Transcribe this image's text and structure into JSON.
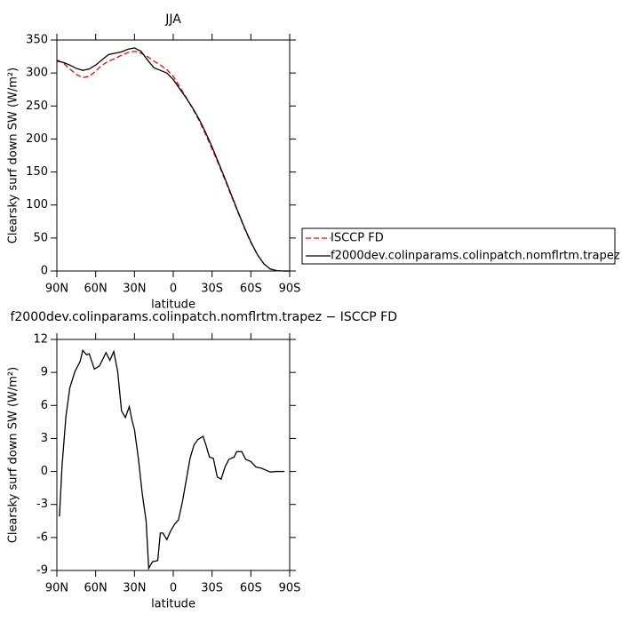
{
  "chart_data": [
    {
      "type": "line",
      "title": "JJA",
      "xlabel": "latitude",
      "ylabel": "Clearsky surf down SW (W/m²)",
      "x": [
        90,
        85,
        80,
        75,
        70,
        65,
        60,
        55,
        50,
        45,
        40,
        35,
        30,
        25,
        20,
        15,
        10,
        5,
        0,
        -5,
        -10,
        -15,
        -20,
        -25,
        -30,
        -35,
        -40,
        -45,
        -50,
        -55,
        -60,
        -65,
        -70,
        -75,
        -80,
        -85,
        -90
      ],
      "series": [
        {
          "name": "ISCCP FD",
          "color": "#ff0000",
          "line_style": "dashed",
          "values": [
            320,
            315,
            306,
            298,
            293,
            295,
            303,
            312,
            318,
            322,
            327,
            331,
            333,
            330,
            325,
            318,
            312,
            305,
            295,
            279,
            263,
            246,
            228,
            207,
            185,
            162,
            138,
            113,
            89,
            65,
            43,
            25,
            11,
            3,
            0.5,
            0,
            0
          ]
        },
        {
          "name": "f2000dev.colinparams.colinpatch.nomflrtm.trapez",
          "color": "#000000",
          "line_style": "solid",
          "values": [
            318,
            316,
            312,
            307,
            304,
            306,
            312,
            320,
            328,
            330,
            332,
            336,
            338,
            333,
            320,
            308,
            304,
            300,
            290,
            276,
            262,
            247,
            230,
            210,
            188,
            164,
            140,
            115,
            90,
            66,
            44,
            25,
            11,
            3,
            0.5,
            0,
            0
          ]
        }
      ],
      "xlim": [
        90,
        -90
      ],
      "xticks": [
        {
          "value": 90,
          "label": "90N"
        },
        {
          "value": 60,
          "label": "60N"
        },
        {
          "value": 30,
          "label": "30N"
        },
        0,
        {
          "value": -30,
          "label": "30S"
        },
        {
          "value": -60,
          "label": "60S"
        },
        {
          "value": -90,
          "label": "90S"
        }
      ],
      "ylim": [
        0,
        350
      ],
      "yticks": [
        0,
        50,
        100,
        150,
        200,
        250,
        300,
        350
      ],
      "legend": "right"
    },
    {
      "type": "line",
      "title": "f2000dev.colinparams.colinpatch.nomflrtm.trapez − ISCCP FD",
      "xlabel": "latitude",
      "ylabel": "Clearsky surf down SW (W/m²)",
      "x": [
        88,
        86,
        83,
        80,
        76,
        72,
        70,
        67,
        65,
        61,
        57,
        52,
        49,
        46,
        43,
        40,
        37,
        34,
        32,
        30,
        27,
        24,
        21,
        19,
        16,
        12,
        10,
        8,
        5,
        2,
        -1,
        -4,
        -7,
        -10,
        -13,
        -16,
        -19,
        -23,
        -25,
        -28,
        -31,
        -34,
        -37,
        -40,
        -43,
        -47,
        -49,
        -53,
        -56,
        -60,
        -64,
        -68,
        -72,
        -75,
        -80,
        -86
      ],
      "values": [
        -4.1,
        0.5,
        5,
        7.6,
        9.1,
        10,
        11,
        10.6,
        10.7,
        9.3,
        9.6,
        10.8,
        10.1,
        10.9,
        9.1,
        5.5,
        4.9,
        5.9,
        4.7,
        3.8,
        1.2,
        -2,
        -4.5,
        -8.8,
        -8.2,
        -8.1,
        -5.6,
        -5.6,
        -6.2,
        -5.4,
        -4.8,
        -4.4,
        -2.8,
        -0.8,
        1.2,
        2.4,
        2.9,
        3.2,
        2.5,
        1.3,
        1.2,
        -0.5,
        -0.7,
        0.4,
        1.1,
        1.3,
        1.8,
        1.8,
        1.1,
        0.9,
        0.4,
        0.3,
        0.1,
        -0.05,
        0,
        0
      ],
      "color": "#000000",
      "xlim": [
        90,
        -90
      ],
      "xticks": [
        {
          "value": 90,
          "label": "90N"
        },
        {
          "value": 60,
          "label": "60N"
        },
        {
          "value": 30,
          "label": "30N"
        },
        0,
        {
          "value": -30,
          "label": "30S"
        },
        {
          "value": -60,
          "label": "60S"
        },
        {
          "value": -90,
          "label": "90S"
        }
      ],
      "ylim": [
        -9,
        12
      ],
      "yticks": [
        -9,
        -6,
        -3,
        0,
        3,
        6,
        9,
        12
      ]
    }
  ]
}
